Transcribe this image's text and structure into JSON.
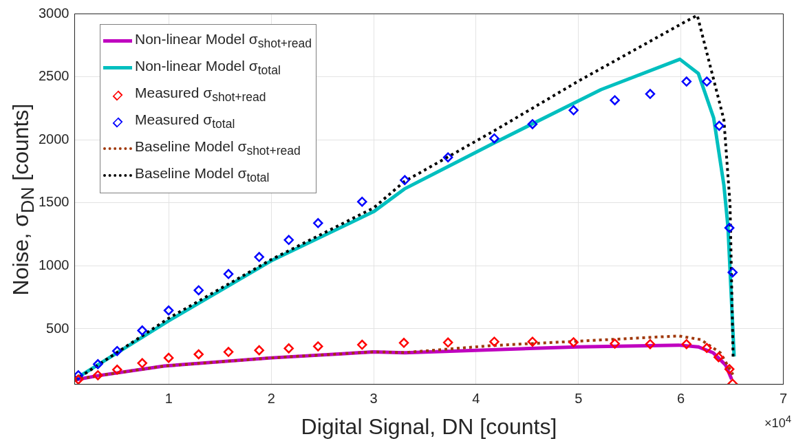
{
  "chart_data": {
    "type": "line",
    "xlabel": "Digital Signal, DN [counts]",
    "ylabel": "Noise, σ$_{DN}$ [counts]",
    "xlim": [
      0.08,
      7
    ],
    "xticks": [
      1,
      2,
      3,
      4,
      5,
      6,
      7
    ],
    "ylim": [
      60,
      3000
    ],
    "yticks": [
      500,
      1000,
      1500,
      2000,
      2500,
      3000
    ],
    "grid": true,
    "legend": "top left",
    "annotations": [
      "×10$^{4}$"
    ],
    "series": [
      {
        "name": "Non-linear Model σ$_{shot+read}$",
        "type": "line",
        "line_style": "solid",
        "color": "#bf00bf",
        "x": [
          0.08,
          0.307,
          0.954,
          2.005,
          2.997,
          3.304,
          4.99,
          5.978,
          6.17,
          6.315,
          6.436,
          6.496
        ],
        "values": [
          95,
          128,
          205,
          270,
          317,
          310,
          357,
          371,
          357,
          310,
          214,
          100
        ]
      },
      {
        "name": "Non-linear Model σ$_{total}$",
        "type": "line",
        "line_style": "solid",
        "color": "#00bfbf",
        "x": [
          0.08,
          1.0,
          2.0,
          3.0,
          3.3,
          4.18,
          5.22,
          5.99,
          6.17,
          6.32,
          6.42,
          6.46,
          6.52
        ],
        "values": [
          100,
          565,
          1040,
          1430,
          1610,
          1977,
          2398,
          2639,
          2527,
          2174,
          1640,
          1306,
          281
        ]
      },
      {
        "name": "Measured σ$_{shot+read}$",
        "type": "scatter",
        "marker": "diamond",
        "color": "#ff0000",
        "x": [
          0.116,
          0.307,
          0.495,
          0.74,
          0.998,
          1.291,
          1.582,
          1.882,
          2.171,
          2.457,
          2.887,
          3.295,
          3.726,
          4.178,
          4.551,
          4.952,
          5.355,
          5.7,
          6.055,
          6.253,
          6.368,
          6.474,
          6.505
        ],
        "values": [
          98,
          132,
          176,
          228,
          270,
          298,
          317,
          330,
          345,
          361,
          374,
          389,
          392,
          398,
          398,
          394,
          383,
          379,
          379,
          348,
          275,
          180,
          65
        ]
      },
      {
        "name": "Measured σ$_{total}$",
        "type": "scatter",
        "marker": "diamond",
        "color": "#0000ff",
        "x": [
          0.116,
          0.307,
          0.495,
          0.74,
          0.998,
          1.291,
          1.582,
          1.882,
          2.171,
          2.457,
          2.887,
          3.304,
          3.726,
          4.178,
          4.551,
          4.952,
          5.355,
          5.7,
          6.055,
          6.253,
          6.374,
          6.474,
          6.505
        ],
        "values": [
          132,
          220,
          324,
          487,
          646,
          806,
          935,
          1070,
          1205,
          1339,
          1509,
          1680,
          1861,
          2011,
          2124,
          2234,
          2314,
          2364,
          2462,
          2462,
          2111,
          1301,
          948
        ]
      },
      {
        "name": "Baseline Model σ$_{shot+read}$",
        "type": "line",
        "line_style": "dotted",
        "color": "#a0380a",
        "x": [
          0.08,
          0.307,
          0.954,
          2.005,
          2.997,
          3.304,
          4.147,
          4.99,
          5.978,
          6.193,
          6.386,
          6.508
        ],
        "values": [
          95,
          128,
          205,
          270,
          317,
          312,
          367,
          402,
          444,
          415,
          310,
          137
        ]
      },
      {
        "name": "Baseline Model σ$_{total}$",
        "type": "line",
        "line_style": "dotted",
        "color": "#000000",
        "x": [
          0.08,
          1.0,
          2.0,
          3.0,
          3.3,
          4.18,
          5.0,
          6.05,
          6.16,
          6.42,
          6.48,
          6.51
        ],
        "values": [
          90,
          585,
          1050,
          1460,
          1669,
          2073,
          2466,
          2940,
          2988,
          2159,
          1487,
          270
        ]
      }
    ]
  }
}
